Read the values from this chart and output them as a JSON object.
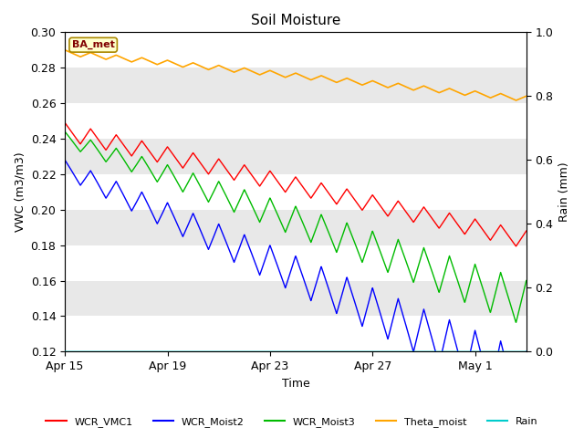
{
  "title": "Soil Moisture",
  "xlabel": "Time",
  "ylabel_left": "VWC (m3/m3)",
  "ylabel_right": "Rain (mm)",
  "annotation_text": "BA_met",
  "annotation_bg": "#FFFFCC",
  "annotation_border": "#AA8800",
  "annotation_text_color": "#800000",
  "ylim_left": [
    0.12,
    0.3
  ],
  "ylim_right": [
    0.0,
    1.0
  ],
  "yticks_left": [
    0.12,
    0.14,
    0.16,
    0.18,
    0.2,
    0.22,
    0.24,
    0.26,
    0.28,
    0.3
  ],
  "yticks_right": [
    0.0,
    0.2,
    0.4,
    0.6,
    0.8,
    1.0
  ],
  "xtick_labels": [
    "Apr 15",
    "Apr 19",
    "Apr 23",
    "Apr 27",
    "May 1"
  ],
  "xtick_positions": [
    0,
    4,
    8,
    12,
    16
  ],
  "xlim": [
    0,
    18
  ],
  "bg_color": "#FFFFFF",
  "plot_bg": "#E8E8E8",
  "band_colors": [
    "#DCDCDC",
    "#E8E8E8"
  ],
  "line_colors": {
    "WCR_VMC1": "#FF0000",
    "WCR_Moist2": "#0000FF",
    "WCR_Moist3": "#00BB00",
    "Theta_moist": "#FFA500",
    "Rain": "#00CCCC"
  },
  "legend_labels": [
    "WCR_VMC1",
    "WCR_Moist2",
    "WCR_Moist3",
    "Theta_moist",
    "Rain"
  ]
}
